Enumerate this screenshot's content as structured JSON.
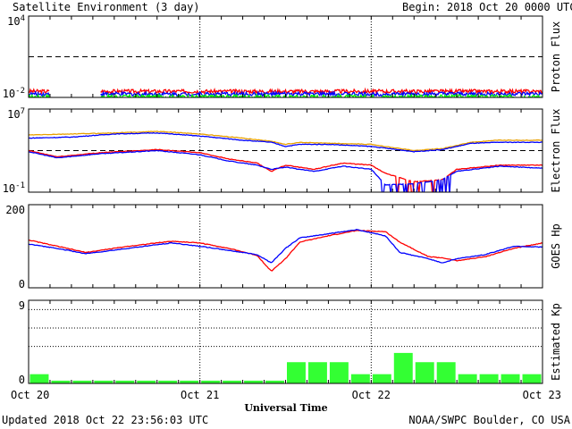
{
  "header": {
    "title": "Satellite Environment (3 day)",
    "begin_label": "Begin:",
    "begin_value": "2018 Oct 20 0000 UTC"
  },
  "footer": {
    "updated": "Updated 2018 Oct 22 23:56:03 UTC",
    "credit": "NOAA/SWPC Boulder, CO USA",
    "xlabel": "Universal Time"
  },
  "x_ticks": [
    "Oct 20",
    "Oct 21",
    "Oct 22",
    "Oct 23"
  ],
  "colors": {
    "red": "#ff0000",
    "blue": "#0000ff",
    "green": "#00ff00",
    "orange": "#e8a000",
    "bar": "#33ff33"
  },
  "chart_data": [
    {
      "type": "line",
      "ylabel": "Proton Flux",
      "scale": "log",
      "ylim_exp": [
        -2,
        4
      ],
      "y_tick_labels": [
        {
          "base": "10",
          "exp": "4"
        },
        {
          "base": "10",
          "exp": "-2"
        }
      ],
      "threshold_exp": 1,
      "gap_hours": [
        3,
        10
      ],
      "series": [
        {
          "color": "red",
          "level_exp": -1.55
        },
        {
          "color": "blue",
          "level_exp": -1.75
        },
        {
          "color": "green",
          "level_exp": -1.95
        }
      ]
    },
    {
      "type": "line",
      "ylabel": "Electron Flux",
      "scale": "log",
      "ylim_exp": [
        -1,
        7
      ],
      "y_tick_labels": [
        {
          "base": "10",
          "exp": "7"
        },
        {
          "base": "10",
          "exp": "-1"
        }
      ],
      "threshold_exp": 3,
      "series": [
        {
          "color": "orange",
          "points": [
            [
              0,
              4.5
            ],
            [
              6,
              4.6
            ],
            [
              12,
              4.7
            ],
            [
              18,
              4.85
            ],
            [
              24,
              4.6
            ],
            [
              30,
              4.2
            ],
            [
              34,
              3.9
            ],
            [
              36,
              3.6
            ],
            [
              38,
              3.8
            ],
            [
              42,
              3.7
            ],
            [
              48,
              3.6
            ],
            [
              54,
              3.0
            ],
            [
              58,
              3.2
            ],
            [
              62,
              3.8
            ],
            [
              66,
              4.0
            ],
            [
              72,
              4.0
            ]
          ]
        },
        {
          "color": "blue",
          "points": [
            [
              0,
              4.2
            ],
            [
              6,
              4.3
            ],
            [
              12,
              4.6
            ],
            [
              18,
              4.7
            ],
            [
              24,
              4.4
            ],
            [
              30,
              4.0
            ],
            [
              34,
              3.8
            ],
            [
              36,
              3.4
            ],
            [
              38,
              3.6
            ],
            [
              42,
              3.6
            ],
            [
              48,
              3.4
            ],
            [
              54,
              2.9
            ],
            [
              58,
              3.1
            ],
            [
              62,
              3.7
            ],
            [
              66,
              3.8
            ],
            [
              72,
              3.8
            ]
          ]
        },
        {
          "color": "red",
          "points": [
            [
              0,
              3.0
            ],
            [
              4,
              2.4
            ],
            [
              10,
              2.8
            ],
            [
              18,
              3.1
            ],
            [
              24,
              2.8
            ],
            [
              28,
              2.2
            ],
            [
              32,
              1.8
            ],
            [
              34,
              1.0
            ],
            [
              36,
              1.6
            ],
            [
              40,
              1.2
            ],
            [
              44,
              1.8
            ],
            [
              48,
              1.6
            ],
            [
              50,
              0.8
            ],
            [
              54,
              0.0
            ],
            [
              58,
              0.2
            ],
            [
              60,
              1.2
            ],
            [
              66,
              1.6
            ],
            [
              72,
              1.6
            ]
          ]
        },
        {
          "color": "blue",
          "points": [
            [
              0,
              2.9
            ],
            [
              4,
              2.3
            ],
            [
              10,
              2.7
            ],
            [
              18,
              3.0
            ],
            [
              24,
              2.6
            ],
            [
              28,
              2.0
            ],
            [
              32,
              1.6
            ],
            [
              34,
              1.2
            ],
            [
              36,
              1.4
            ],
            [
              40,
              1.0
            ],
            [
              44,
              1.5
            ],
            [
              48,
              1.2
            ],
            [
              50,
              -0.3
            ],
            [
              54,
              -0.2
            ],
            [
              58,
              0.2
            ],
            [
              60,
              1.0
            ],
            [
              66,
              1.5
            ],
            [
              72,
              1.3
            ]
          ]
        }
      ]
    },
    {
      "type": "line",
      "ylabel": "GOES Hp",
      "scale": "linear",
      "ylim": [
        0,
        200
      ],
      "y_tick_labels": [
        "200",
        "0"
      ],
      "series": [
        {
          "color": "red",
          "points": [
            [
              0,
              115
            ],
            [
              4,
              100
            ],
            [
              8,
              85
            ],
            [
              14,
              100
            ],
            [
              20,
              112
            ],
            [
              24,
              108
            ],
            [
              28,
              95
            ],
            [
              32,
              78
            ],
            [
              34,
              40
            ],
            [
              36,
              70
            ],
            [
              38,
              110
            ],
            [
              42,
              125
            ],
            [
              46,
              138
            ],
            [
              50,
              135
            ],
            [
              52,
              110
            ],
            [
              56,
              75
            ],
            [
              58,
              72
            ],
            [
              60,
              65
            ],
            [
              64,
              75
            ],
            [
              68,
              95
            ],
            [
              72,
              108
            ]
          ]
        },
        {
          "color": "blue",
          "points": [
            [
              0,
              105
            ],
            [
              4,
              95
            ],
            [
              8,
              82
            ],
            [
              14,
              95
            ],
            [
              20,
              108
            ],
            [
              24,
              100
            ],
            [
              28,
              90
            ],
            [
              32,
              80
            ],
            [
              34,
              60
            ],
            [
              36,
              95
            ],
            [
              38,
              120
            ],
            [
              42,
              130
            ],
            [
              46,
              140
            ],
            [
              50,
              125
            ],
            [
              52,
              85
            ],
            [
              56,
              70
            ],
            [
              58,
              60
            ],
            [
              60,
              70
            ],
            [
              64,
              80
            ],
            [
              68,
              100
            ],
            [
              72,
              98
            ]
          ]
        }
      ]
    },
    {
      "type": "bar",
      "ylabel": "Estimated Kp",
      "ylim": [
        0,
        9
      ],
      "y_tick_labels": [
        "9",
        "0"
      ],
      "gridlines": [
        4,
        6,
        8
      ],
      "bar_hours": 3,
      "values": [
        1.0,
        0.3,
        0.3,
        0.3,
        0.3,
        0.3,
        0.3,
        0.3,
        0.3,
        0.3,
        0.3,
        0.3,
        2.3,
        2.3,
        2.3,
        1.0,
        1.0,
        3.3,
        2.3,
        2.3,
        1.0,
        1.0,
        1.0,
        1.0
      ]
    }
  ]
}
